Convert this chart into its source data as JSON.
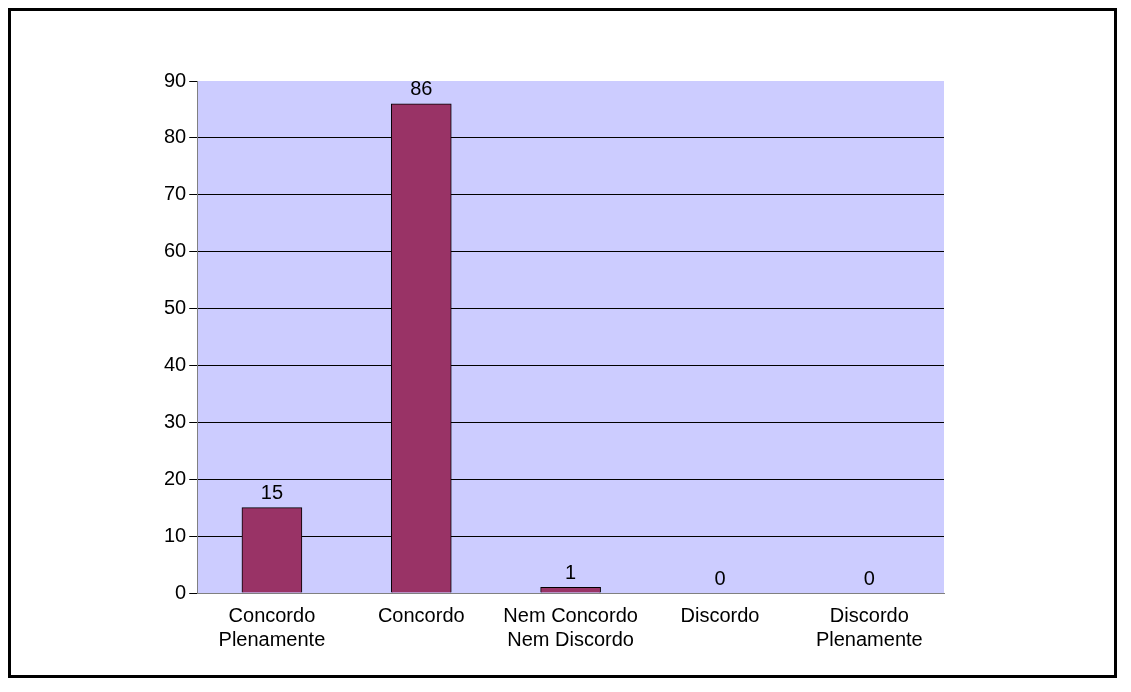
{
  "chart_data": {
    "type": "bar",
    "categories": [
      "Concordo Plenamente",
      "Concordo",
      "Nem Concordo Nem Discordo",
      "Discordo",
      "Discordo Plenamente"
    ],
    "values": [
      15,
      86,
      1,
      0,
      0
    ],
    "color": "#993366",
    "ylim": [
      0,
      90
    ],
    "yticks": [
      0,
      10,
      20,
      30,
      40,
      50,
      60,
      70,
      80,
      90
    ],
    "grid": "y",
    "data_labels": true,
    "legend": false
  }
}
